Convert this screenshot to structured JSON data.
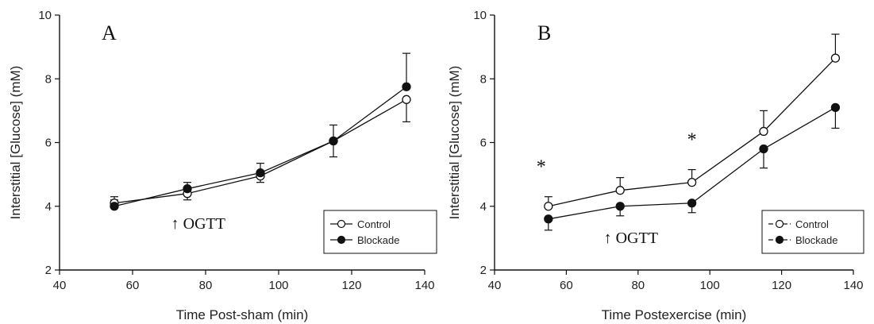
{
  "chart_data": [
    {
      "type": "line",
      "panel": "A",
      "xlabel": "Time Post-sham (min)",
      "ylabel": "Interstitial [Glucose] (mM)",
      "xlim": [
        40,
        140
      ],
      "ylim": [
        2,
        10
      ],
      "xticks": [
        40,
        60,
        80,
        100,
        120,
        140
      ],
      "yticks": [
        2,
        4,
        6,
        8,
        10
      ],
      "grid": false,
      "legend_position": "bottom-right",
      "annotations": [
        {
          "text": "↑  OGTT",
          "x": 78,
          "y": 3.3
        }
      ],
      "series": [
        {
          "name": "Control",
          "marker": "open-circle",
          "x": [
            55,
            75,
            95,
            115,
            135
          ],
          "y": [
            4.1,
            4.4,
            4.95,
            6.05,
            7.35
          ],
          "err": [
            0.2,
            0.2,
            0.2,
            0.5,
            0.7
          ],
          "err_dir": [
            "up",
            "down",
            "down",
            "down",
            "down"
          ]
        },
        {
          "name": "Blockade",
          "marker": "filled-circle",
          "x": [
            55,
            75,
            95,
            115,
            135
          ],
          "y": [
            4.0,
            4.55,
            5.05,
            6.05,
            7.75
          ],
          "err": [
            0.2,
            0.2,
            0.3,
            0.5,
            1.05
          ],
          "err_dir": [
            "up",
            "up",
            "up",
            "up",
            "up"
          ]
        }
      ]
    },
    {
      "type": "line",
      "panel": "B",
      "xlabel": "Time Postexercise (min)",
      "ylabel": "Interstitial [Glucose] (mM)",
      "xlim": [
        40,
        140
      ],
      "ylim": [
        2,
        10
      ],
      "xticks": [
        40,
        60,
        80,
        100,
        120,
        140
      ],
      "yticks": [
        2,
        4,
        6,
        8,
        10
      ],
      "grid": false,
      "legend_position": "bottom-right",
      "annotations": [
        {
          "text": "↑  OGTT",
          "x": 78,
          "y": 2.85
        },
        {
          "text": "*",
          "x": 53,
          "y": 5.05
        },
        {
          "text": "*",
          "x": 95,
          "y": 5.9
        },
        {
          "text": "*",
          "x": 135,
          "y": 10.35
        }
      ],
      "series": [
        {
          "name": "Control",
          "marker": "open-circle",
          "x": [
            55,
            75,
            95,
            115,
            135
          ],
          "y": [
            4.0,
            4.5,
            4.75,
            6.35,
            8.65
          ],
          "err": [
            0.3,
            0.4,
            0.4,
            0.65,
            0.75
          ],
          "err_dir": [
            "up",
            "up",
            "up",
            "up",
            "up"
          ]
        },
        {
          "name": "Blockade",
          "marker": "filled-circle",
          "x": [
            55,
            75,
            95,
            115,
            135
          ],
          "y": [
            3.6,
            4.0,
            4.1,
            5.8,
            7.1
          ],
          "err": [
            0.35,
            0.3,
            0.3,
            0.6,
            0.65
          ],
          "err_dir": [
            "down",
            "down",
            "down",
            "down",
            "down"
          ]
        }
      ]
    }
  ]
}
